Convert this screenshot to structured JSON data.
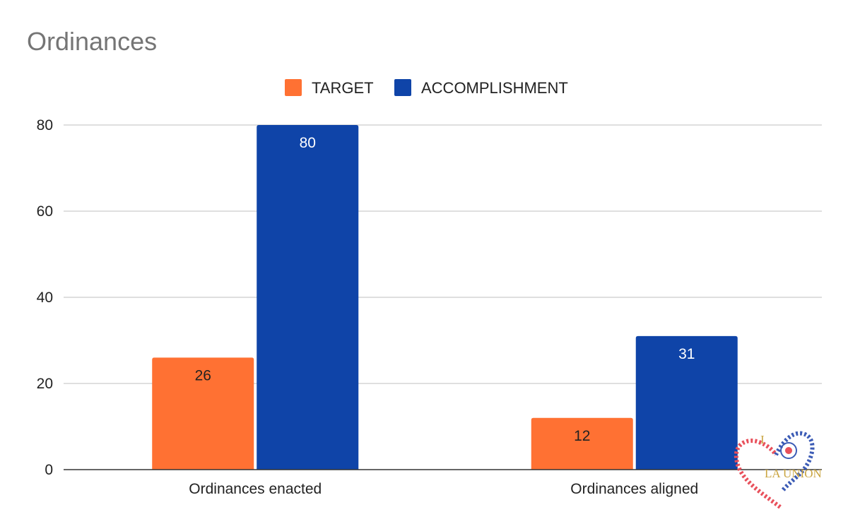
{
  "chart_data": {
    "type": "bar",
    "title": "Ordinances",
    "categories": [
      "Ordinances enacted",
      "Ordinances aligned"
    ],
    "series": [
      {
        "name": "TARGET",
        "color": "#ff7133",
        "label_color": "#222222",
        "values": [
          26,
          12
        ]
      },
      {
        "name": "ACCOMPLISHMENT",
        "color": "#0f44a8",
        "label_color": "#ffffff",
        "values": [
          80,
          31
        ]
      }
    ],
    "xlabel": "",
    "ylabel": "",
    "ylim": [
      0,
      80
    ],
    "yticks": [
      0,
      20,
      40,
      60,
      80
    ],
    "grid": true,
    "legend_position": "top",
    "gridline_color": "#cccccc",
    "axis_color": "#333333"
  },
  "logo": {
    "text_top": "I",
    "text_bottom": "LA UNION",
    "heart_left_color": "#e8505b",
    "heart_right_color": "#3b5bb5"
  }
}
